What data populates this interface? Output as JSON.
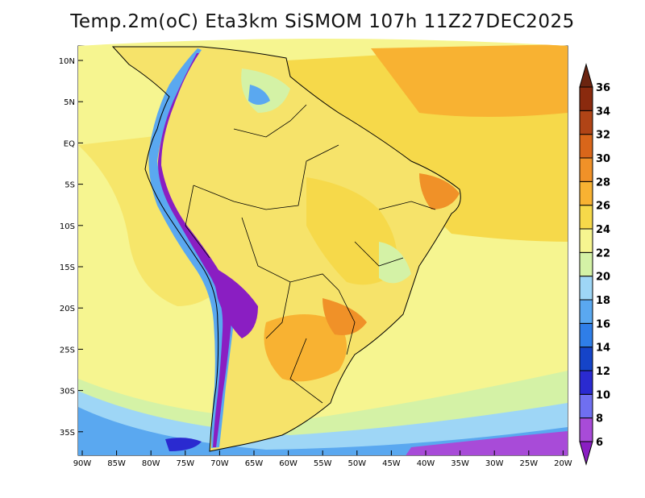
{
  "title": "Temp.2m(oC) Eta3km SiSMOM 107h 11Z27DEC2025",
  "lat_labels": [
    "10N",
    "5N",
    "EQ",
    "5S",
    "10S",
    "15S",
    "20S",
    "25S",
    "30S",
    "35S"
  ],
  "lon_labels": [
    "90W",
    "85W",
    "80W",
    "75W",
    "70W",
    "65W",
    "60W",
    "55W",
    "50W",
    "45W",
    "40W",
    "35W",
    "30W",
    "25W",
    "20W"
  ],
  "colorbar": {
    "levels": [
      "6",
      "8",
      "10",
      "12",
      "14",
      "16",
      "18",
      "20",
      "22",
      "24",
      "26",
      "28",
      "30",
      "32",
      "34",
      "36"
    ],
    "colors": [
      "#8a1ec2",
      "#a84bd8",
      "#6f6ff0",
      "#2a2ad0",
      "#1544c8",
      "#2f7ee8",
      "#5aa8f0",
      "#9ed6f6",
      "#d4f2a6",
      "#f6f590",
      "#f6d94a",
      "#f8b232",
      "#f09128",
      "#d9661a",
      "#b04416",
      "#8a2a0e",
      "#6b2410"
    ],
    "unit": "oC"
  }
}
